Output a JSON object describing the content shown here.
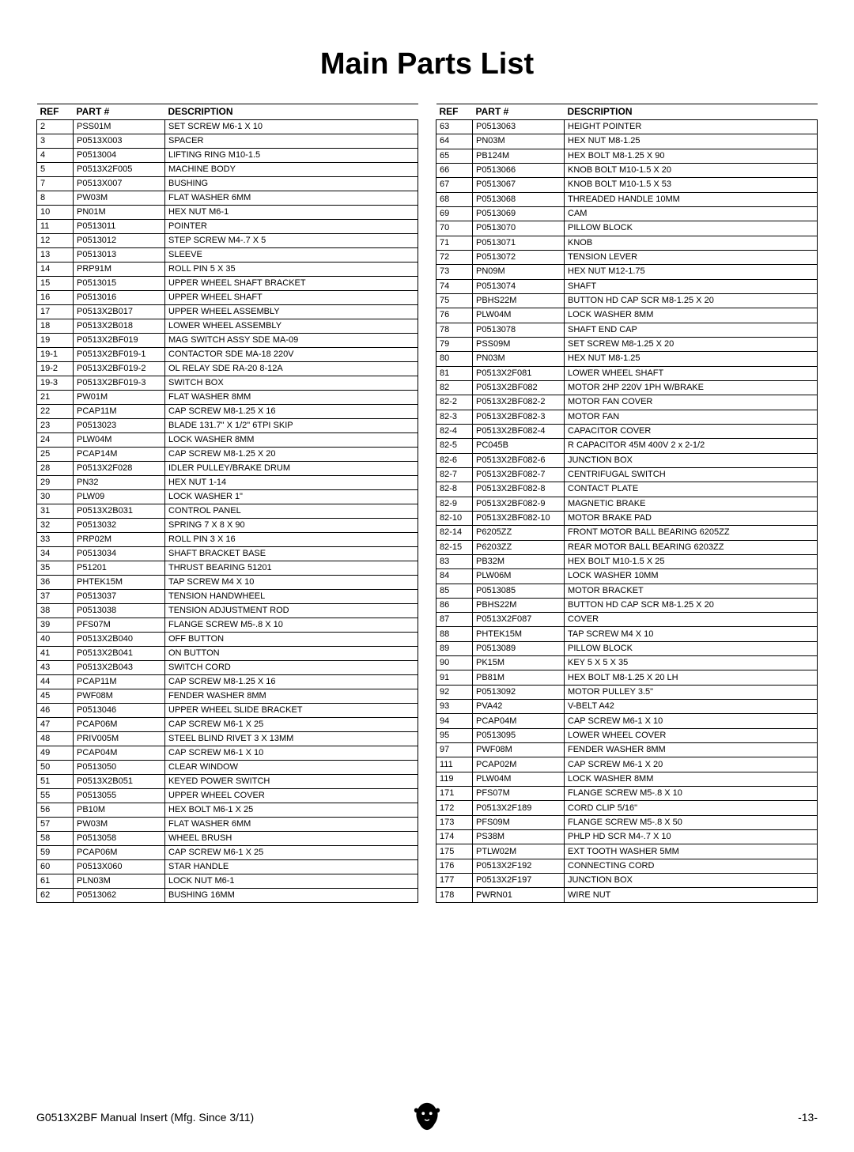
{
  "title": "Main Parts List",
  "headers": {
    "ref": "REF",
    "part": "PART #",
    "desc": "DESCRIPTION"
  },
  "footer": {
    "left": "G0513X2BF Manual Insert (Mfg. Since 3/11)",
    "right": "-13-"
  },
  "left_rows": [
    [
      "2",
      "PSS01M",
      "SET SCREW M6-1 X 10"
    ],
    [
      "3",
      "P0513X003",
      "SPACER"
    ],
    [
      "4",
      "P0513004",
      "LIFTING RING M10-1.5"
    ],
    [
      "5",
      "P0513X2F005",
      "MACHINE BODY"
    ],
    [
      "7",
      "P0513X007",
      "BUSHING"
    ],
    [
      "8",
      "PW03M",
      "FLAT WASHER 6MM"
    ],
    [
      "10",
      "PN01M",
      "HEX NUT M6-1"
    ],
    [
      "11",
      "P0513011",
      "POINTER"
    ],
    [
      "12",
      "P0513012",
      "STEP SCREW M4-.7 X 5"
    ],
    [
      "13",
      "P0513013",
      "SLEEVE"
    ],
    [
      "14",
      "PRP91M",
      "ROLL PIN 5 X 35"
    ],
    [
      "15",
      "P0513015",
      "UPPER WHEEL SHAFT BRACKET"
    ],
    [
      "16",
      "P0513016",
      "UPPER WHEEL SHAFT"
    ],
    [
      "17",
      "P0513X2B017",
      "UPPER WHEEL ASSEMBLY"
    ],
    [
      "18",
      "P0513X2B018",
      "LOWER WHEEL ASSEMBLY"
    ],
    [
      "19",
      "P0513X2BF019",
      "MAG SWITCH ASSY SDE MA-09"
    ],
    [
      "19-1",
      "P0513X2BF019-1",
      "CONTACTOR SDE MA-18 220V"
    ],
    [
      "19-2",
      "P0513X2BF019-2",
      "OL RELAY SDE RA-20 8-12A"
    ],
    [
      "19-3",
      "P0513X2BF019-3",
      "SWITCH BOX"
    ],
    [
      "21",
      "PW01M",
      "FLAT WASHER 8MM"
    ],
    [
      "22",
      "PCAP11M",
      "CAP SCREW M8-1.25 X 16"
    ],
    [
      "23",
      "P0513023",
      "BLADE 131.7\" X 1/2\" 6TPI SKIP"
    ],
    [
      "24",
      "PLW04M",
      "LOCK WASHER 8MM"
    ],
    [
      "25",
      "PCAP14M",
      "CAP SCREW M8-1.25 X 20"
    ],
    [
      "28",
      "P0513X2F028",
      "IDLER PULLEY/BRAKE DRUM"
    ],
    [
      "29",
      "PN32",
      "HEX NUT 1-14"
    ],
    [
      "30",
      "PLW09",
      "LOCK WASHER 1\""
    ],
    [
      "31",
      "P0513X2B031",
      "CONTROL PANEL"
    ],
    [
      "32",
      "P0513032",
      "SPRING 7 X 8 X 90"
    ],
    [
      "33",
      "PRP02M",
      "ROLL PIN 3 X 16"
    ],
    [
      "34",
      "P0513034",
      "SHAFT BRACKET BASE"
    ],
    [
      "35",
      "P51201",
      "THRUST BEARING 51201"
    ],
    [
      "36",
      "PHTEK15M",
      "TAP SCREW M4 X 10"
    ],
    [
      "37",
      "P0513037",
      "TENSION HANDWHEEL"
    ],
    [
      "38",
      "P0513038",
      "TENSION ADJUSTMENT ROD"
    ],
    [
      "39",
      "PFS07M",
      "FLANGE SCREW M5-.8 X 10"
    ],
    [
      "40",
      "P0513X2B040",
      "OFF BUTTON"
    ],
    [
      "41",
      "P0513X2B041",
      "ON BUTTON"
    ],
    [
      "43",
      "P0513X2B043",
      "SWITCH CORD"
    ],
    [
      "44",
      "PCAP11M",
      "CAP SCREW M8-1.25 X 16"
    ],
    [
      "45",
      "PWF08M",
      "FENDER WASHER 8MM"
    ],
    [
      "46",
      "P0513046",
      "UPPER WHEEL SLIDE BRACKET"
    ],
    [
      "47",
      "PCAP06M",
      "CAP SCREW M6-1 X 25"
    ],
    [
      "48",
      "PRIV005M",
      "STEEL BLIND RIVET 3 X 13MM"
    ],
    [
      "49",
      "PCAP04M",
      "CAP SCREW M6-1 X 10"
    ],
    [
      "50",
      "P0513050",
      "CLEAR WINDOW"
    ],
    [
      "51",
      "P0513X2B051",
      "KEYED POWER SWITCH"
    ],
    [
      "55",
      "P0513055",
      "UPPER WHEEL COVER"
    ],
    [
      "56",
      "PB10M",
      "HEX BOLT M6-1 X 25"
    ],
    [
      "57",
      "PW03M",
      "FLAT WASHER 6MM"
    ],
    [
      "58",
      "P0513058",
      "WHEEL BRUSH"
    ],
    [
      "59",
      "PCAP06M",
      "CAP SCREW M6-1 X 25"
    ],
    [
      "60",
      "P0513X060",
      "STAR HANDLE"
    ],
    [
      "61",
      "PLN03M",
      "LOCK NUT M6-1"
    ],
    [
      "62",
      "P0513062",
      "BUSHING 16MM"
    ]
  ],
  "right_rows": [
    [
      "63",
      "P0513063",
      "HEIGHT POINTER"
    ],
    [
      "64",
      "PN03M",
      "HEX NUT M8-1.25"
    ],
    [
      "65",
      "PB124M",
      "HEX BOLT M8-1.25 X 90"
    ],
    [
      "66",
      "P0513066",
      "KNOB BOLT M10-1.5 X 20"
    ],
    [
      "67",
      "P0513067",
      "KNOB BOLT M10-1.5 X 53"
    ],
    [
      "68",
      "P0513068",
      "THREADED HANDLE 10MM"
    ],
    [
      "69",
      "P0513069",
      "CAM"
    ],
    [
      "70",
      "P0513070",
      "PILLOW BLOCK"
    ],
    [
      "71",
      "P0513071",
      "KNOB"
    ],
    [
      "72",
      "P0513072",
      "TENSION LEVER"
    ],
    [
      "73",
      "PN09M",
      "HEX NUT M12-1.75"
    ],
    [
      "74",
      "P0513074",
      "SHAFT"
    ],
    [
      "75",
      "PBHS22M",
      "BUTTON HD CAP SCR M8-1.25 X 20"
    ],
    [
      "76",
      "PLW04M",
      "LOCK WASHER 8MM"
    ],
    [
      "78",
      "P0513078",
      "SHAFT END CAP"
    ],
    [
      "79",
      "PSS09M",
      "SET SCREW M8-1.25 X 20"
    ],
    [
      "80",
      "PN03M",
      "HEX NUT M8-1.25"
    ],
    [
      "81",
      "P0513X2F081",
      "LOWER WHEEL SHAFT"
    ],
    [
      "82",
      "P0513X2BF082",
      "MOTOR 2HP 220V 1PH W/BRAKE"
    ],
    [
      "82-2",
      "P0513X2BF082-2",
      "MOTOR FAN COVER"
    ],
    [
      "82-3",
      "P0513X2BF082-3",
      "MOTOR FAN"
    ],
    [
      "82-4",
      "P0513X2BF082-4",
      "CAPACITOR COVER"
    ],
    [
      "82-5",
      "PC045B",
      "R CAPACITOR 45M 400V 2 x 2-1/2"
    ],
    [
      "82-6",
      "P0513X2BF082-6",
      "JUNCTION BOX"
    ],
    [
      "82-7",
      "P0513X2BF082-7",
      "CENTRIFUGAL SWITCH"
    ],
    [
      "82-8",
      "P0513X2BF082-8",
      "CONTACT PLATE"
    ],
    [
      "82-9",
      "P0513X2BF082-9",
      "MAGNETIC BRAKE"
    ],
    [
      "82-10",
      "P0513X2BF082-10",
      "MOTOR BRAKE PAD"
    ],
    [
      "82-14",
      "P6205ZZ",
      "FRONT MOTOR BALL BEARING 6205ZZ"
    ],
    [
      "82-15",
      "P6203ZZ",
      "REAR MOTOR BALL BEARING 6203ZZ"
    ],
    [
      "83",
      "PB32M",
      "HEX BOLT M10-1.5 X 25"
    ],
    [
      "84",
      "PLW06M",
      "LOCK WASHER 10MM"
    ],
    [
      "85",
      "P0513085",
      "MOTOR BRACKET"
    ],
    [
      "86",
      "PBHS22M",
      "BUTTON HD CAP SCR M8-1.25 X 20"
    ],
    [
      "87",
      "P0513X2F087",
      "COVER"
    ],
    [
      "88",
      "PHTEK15M",
      "TAP SCREW M4 X 10"
    ],
    [
      "89",
      "P0513089",
      "PILLOW BLOCK"
    ],
    [
      "90",
      "PK15M",
      "KEY 5 X 5 X 35"
    ],
    [
      "91",
      "PB81M",
      "HEX BOLT M8-1.25 X 20 LH"
    ],
    [
      "92",
      "P0513092",
      "MOTOR PULLEY 3.5\""
    ],
    [
      "93",
      "PVA42",
      "V-BELT A42"
    ],
    [
      "94",
      "PCAP04M",
      "CAP SCREW M6-1 X 10"
    ],
    [
      "95",
      "P0513095",
      "LOWER WHEEL COVER"
    ],
    [
      "97",
      "PWF08M",
      "FENDER WASHER 8MM"
    ],
    [
      "111",
      "PCAP02M",
      "CAP SCREW M6-1 X 20"
    ],
    [
      "119",
      "PLW04M",
      "LOCK WASHER 8MM"
    ],
    [
      "171",
      "PFS07M",
      "FLANGE SCREW M5-.8 X 10"
    ],
    [
      "172",
      "P0513X2F189",
      "CORD CLIP 5/16\""
    ],
    [
      "173",
      "PFS09M",
      "FLANGE SCREW M5-.8 X 50"
    ],
    [
      "174",
      "PS38M",
      "PHLP HD SCR M4-.7 X 10"
    ],
    [
      "175",
      "PTLW02M",
      "EXT TOOTH WASHER 5MM"
    ],
    [
      "176",
      "P0513X2F192",
      "CONNECTING CORD"
    ],
    [
      "177",
      "P0513X2F197",
      "JUNCTION BOX"
    ],
    [
      "178",
      "PWRN01",
      "WIRE NUT"
    ]
  ]
}
